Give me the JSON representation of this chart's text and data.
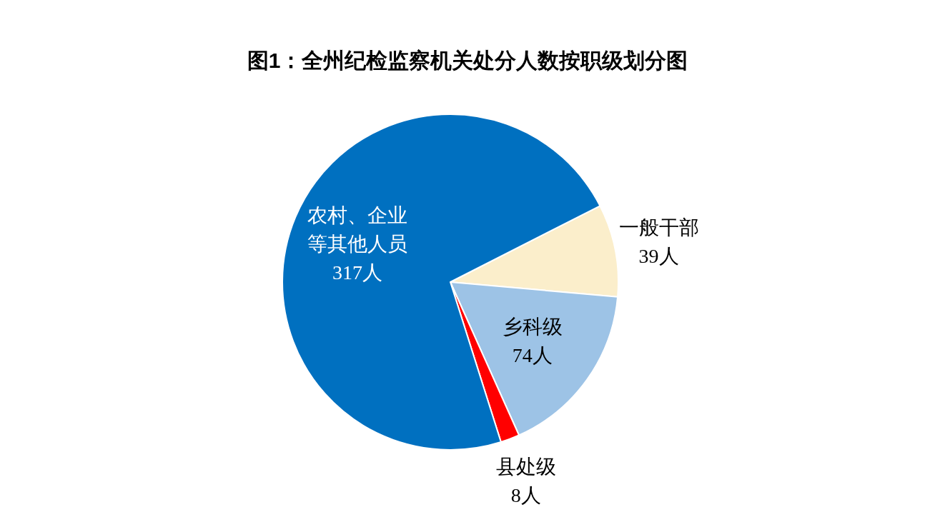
{
  "chart_data": {
    "type": "pie",
    "title": "图1：全州纪检监察机关处分人数按职级划分图",
    "categories": [
      "一般干部",
      "乡科级",
      "县处级",
      "农村、企业等其他人员"
    ],
    "values": [
      39,
      74,
      8,
      317
    ],
    "colors": [
      "#fbeecb",
      "#9dc3e6",
      "#ff0000",
      "#0070c0"
    ],
    "value_labels": [
      "39人",
      "74人",
      "8人",
      "317人"
    ]
  }
}
